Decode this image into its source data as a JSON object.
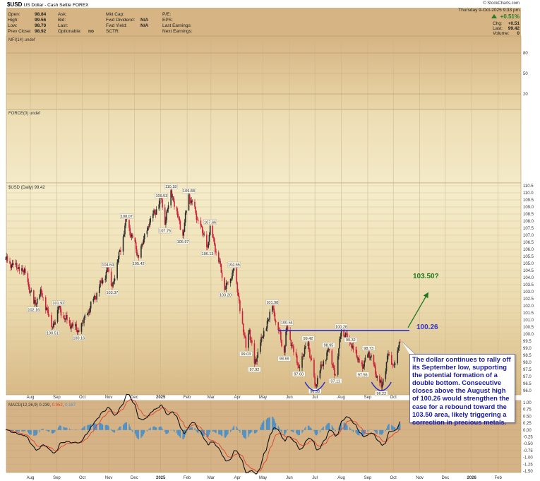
{
  "header": {
    "symbol": "$USD",
    "name": "US Dollar - Cash Settle",
    "exchange": "FOREX",
    "brand": "© StockCharts.com",
    "datetime": "Thursday  9-Oct-2025  9:33 pm",
    "pct_change": "+0.51%",
    "chg_label": "Chg:",
    "chg": "+0.51",
    "last_label": "Last:",
    "last": "99.42",
    "volume_label": "Volume:",
    "volume": "0"
  },
  "info": {
    "col1": [
      {
        "label": "Open:",
        "value": "98.84"
      },
      {
        "label": "High:",
        "value": "99.56"
      },
      {
        "label": "Low:",
        "value": "98.70"
      },
      {
        "label": "Prev Close:",
        "value": "98.92"
      }
    ],
    "col2": [
      {
        "label": "Ask:",
        "value": ""
      },
      {
        "label": "Bid:",
        "value": ""
      },
      {
        "label": "Last:",
        "value": ""
      },
      {
        "label": "Optionable:",
        "value": "no"
      }
    ],
    "col3": [
      {
        "label": "Mkt Cap:",
        "value": ""
      },
      {
        "label": "Fwd Dividend:",
        "value": "N/A"
      },
      {
        "label": "Fwd Yield:",
        "value": "N/A"
      },
      {
        "label": "SCTR:",
        "value": ""
      }
    ],
    "col4": [
      {
        "label": "P/E:",
        "value": ""
      },
      {
        "label": "EPS:",
        "value": ""
      },
      {
        "label": "Last Earnings:",
        "value": ""
      },
      {
        "label": "Next Earnings:",
        "value": ""
      }
    ]
  },
  "colors": {
    "up": "#2a2a2a",
    "down": "#cc1f3a",
    "resistance": "#3333cc",
    "target": "#1f7a1f",
    "macd": "#111111",
    "signal": "#e0402a",
    "hist": "#4a90c8"
  },
  "chart_data": [
    {
      "type": "line",
      "title": "MFI(14) undef",
      "yticks": [
        "80",
        "50",
        "20"
      ],
      "ylim": [
        0,
        100
      ]
    },
    {
      "type": "line",
      "title": "FORCE(0) undef"
    },
    {
      "type": "bar",
      "title": "$USD (Daily) 99.42",
      "ylim": [
        95.75,
        110.5
      ],
      "yticks": [
        "110.5",
        "110.0",
        "109.5",
        "109.0",
        "108.5",
        "108.0",
        "107.5",
        "107.0",
        "106.5",
        "106.0",
        "105.5",
        "105.0",
        "104.5",
        "104.0",
        "103.5",
        "103.0",
        "102.5",
        "102.0",
        "101.5",
        "101.0",
        "100.5",
        "100.0",
        "99.5",
        "99.0",
        "98.5",
        "98.0",
        "97.5",
        "97.0",
        "96.5",
        "96.0"
      ],
      "months": [
        "Aug",
        "Sep",
        "Oct",
        "Nov",
        "Dec",
        "2025",
        "Feb",
        "Mar",
        "Apr",
        "May",
        "Jun",
        "Jul",
        "Aug",
        "Sep",
        "Oct",
        "Nov",
        "Dec",
        "2026",
        "Feb"
      ],
      "path": [
        [
          "2024-07-03",
          105.3
        ],
        [
          "2024-07-12",
          104.9
        ],
        [
          "2024-07-26",
          104.3
        ],
        [
          "2024-08-05",
          102.16
        ],
        [
          "2024-08-14",
          102.9
        ],
        [
          "2024-08-27",
          100.51
        ],
        [
          "2024-09-03",
          101.92
        ],
        [
          "2024-09-11",
          101.1
        ],
        [
          "2024-09-27",
          100.16
        ],
        [
          "2024-10-31",
          104.64
        ],
        [
          "2024-11-05",
          103.37
        ],
        [
          "2024-11-22",
          108.07
        ],
        [
          "2024-12-06",
          105.42
        ],
        [
          "2024-12-20",
          108.2
        ],
        [
          "2025-01-02",
          109.53
        ],
        [
          "2025-01-06",
          107.75
        ],
        [
          "2025-01-13",
          110.18
        ],
        [
          "2025-01-27",
          106.97
        ],
        [
          "2025-02-03",
          109.88
        ],
        [
          "2025-02-25",
          106.13
        ],
        [
          "2025-02-28",
          107.66
        ],
        [
          "2025-03-18",
          103.2
        ],
        [
          "2025-03-28",
          104.65
        ],
        [
          "2025-04-11",
          99.03
        ],
        [
          "2025-04-15",
          100.3
        ],
        [
          "2025-04-21",
          97.92
        ],
        [
          "2025-05-12",
          101.98
        ],
        [
          "2025-05-26",
          98.69
        ],
        [
          "2025-05-29",
          100.54
        ],
        [
          "2025-06-12",
          97.6
        ],
        [
          "2025-06-23",
          99.42
        ],
        [
          "2025-07-01",
          96.38
        ],
        [
          "2025-07-17",
          98.95
        ],
        [
          "2025-07-25",
          97.11
        ],
        [
          "2025-08-01",
          100.26
        ],
        [
          "2025-08-12",
          99.32
        ],
        [
          "2025-08-26",
          97.56
        ],
        [
          "2025-09-02",
          98.73
        ],
        [
          "2025-09-17",
          96.22
        ],
        [
          "2025-09-25",
          98.6
        ],
        [
          "2025-10-01",
          97.8
        ],
        [
          "2025-10-09",
          99.42
        ]
      ],
      "annotations": [
        {
          "date": "2024-08-05",
          "value": "102.16",
          "pos": "low"
        },
        {
          "date": "2024-08-27",
          "value": "100.51",
          "pos": "low"
        },
        {
          "date": "2024-09-03",
          "value": "101.92",
          "pos": "high"
        },
        {
          "date": "2024-09-27",
          "value": "100.16",
          "pos": "low"
        },
        {
          "date": "2024-10-31",
          "value": "104.64",
          "pos": "high"
        },
        {
          "date": "2024-11-05",
          "value": "103.37",
          "pos": "low"
        },
        {
          "date": "2024-11-22",
          "value": "108.07",
          "pos": "high"
        },
        {
          "date": "2024-12-06",
          "value": "105.42",
          "pos": "low"
        },
        {
          "date": "2025-01-02",
          "value": "109.53",
          "pos": "high"
        },
        {
          "date": "2025-01-06",
          "value": "107.75",
          "pos": "low"
        },
        {
          "date": "2025-01-13",
          "value": "110.18",
          "pos": "high"
        },
        {
          "date": "2025-01-27",
          "value": "106.97",
          "pos": "low"
        },
        {
          "date": "2025-02-03",
          "value": "109.88",
          "pos": "high"
        },
        {
          "date": "2025-02-25",
          "value": "106.13",
          "pos": "low"
        },
        {
          "date": "2025-02-28",
          "value": "107.66",
          "pos": "high"
        },
        {
          "date": "2025-03-18",
          "value": "103.20",
          "pos": "low"
        },
        {
          "date": "2025-03-28",
          "value": "104.65",
          "pos": "high"
        },
        {
          "date": "2025-04-11",
          "value": "99.03",
          "pos": "low"
        },
        {
          "date": "2025-04-21",
          "value": "97.92",
          "pos": "low"
        },
        {
          "date": "2025-05-12",
          "value": "101.98",
          "pos": "high"
        },
        {
          "date": "2025-05-26",
          "value": "98.69",
          "pos": "low"
        },
        {
          "date": "2025-05-29",
          "value": "100.54",
          "pos": "high"
        },
        {
          "date": "2025-06-12",
          "value": "97.60",
          "pos": "low"
        },
        {
          "date": "2025-06-23",
          "value": "99.42",
          "pos": "high"
        },
        {
          "date": "2025-07-01",
          "value": "96.38",
          "pos": "low"
        },
        {
          "date": "2025-07-17",
          "value": "98.95",
          "pos": "high"
        },
        {
          "date": "2025-07-25",
          "value": "97.11",
          "pos": "low"
        },
        {
          "date": "2025-08-01",
          "value": "100.26",
          "pos": "high"
        },
        {
          "date": "2025-08-12",
          "value": "99.32",
          "pos": "high"
        },
        {
          "date": "2025-08-26",
          "value": "97.56",
          "pos": "low"
        },
        {
          "date": "2025-09-02",
          "value": "98.73",
          "pos": "high"
        },
        {
          "date": "2025-09-17",
          "value": "96.22",
          "pos": "low"
        }
      ],
      "resistance": {
        "value": 100.26,
        "label": "100.26",
        "from": "2025-05-19"
      },
      "target": {
        "value": 103.5,
        "label": "103.50?"
      },
      "callout": "The dollar continues to rally off its September low, supporting the potential formation of a double bottom. Consecutive closes above the August high of 100.26 would strengthen the case for a rebound toward the 103.50 area, likely triggering a correction in precious metals."
    },
    {
      "type": "line",
      "title": "MACD(12,26,9)",
      "macd": "0.239",
      "signal": "0.052",
      "hist": "0.187",
      "ylim": [
        -1.5,
        1.0
      ],
      "yticks": [
        "1.00",
        "0.75",
        "0.50",
        "0.25",
        "0.00",
        "-0.25",
        "-0.50",
        "-0.75",
        "-1.00",
        "-1.25",
        "-1.50"
      ]
    }
  ]
}
